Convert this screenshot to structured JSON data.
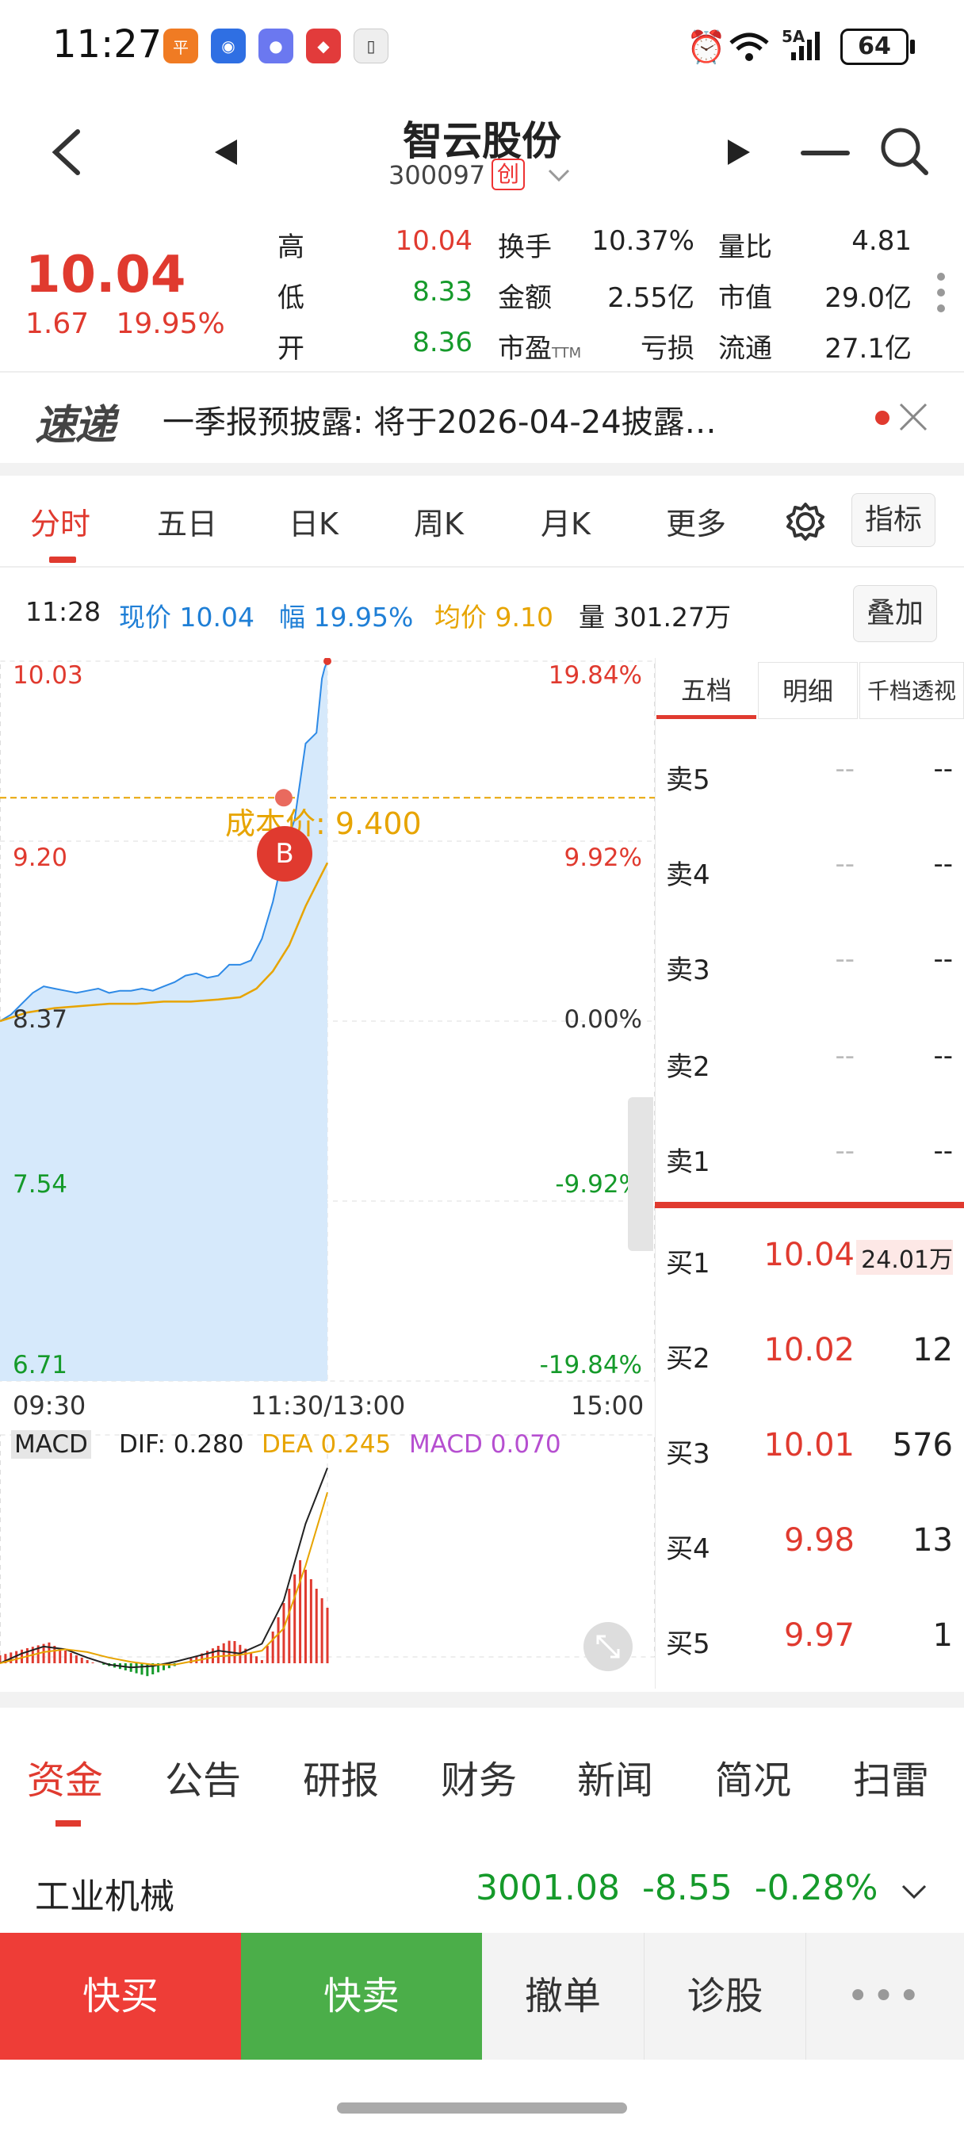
{
  "status_bar": {
    "time": "11:27",
    "network": "5A",
    "battery": "64"
  },
  "header": {
    "stock_name": "智云股份",
    "stock_code": "300097",
    "board_badge": "创"
  },
  "quote": {
    "price": "10.04",
    "change": "1.67",
    "change_pct": "19.95%",
    "high_label": "高",
    "high": "10.04",
    "low_label": "低",
    "low": "8.33",
    "open_label": "开",
    "open": "8.36",
    "turnover_label": "换手",
    "turnover": "10.37%",
    "amount_label": "金额",
    "amount": "2.55亿",
    "pe_label": "市盈",
    "pe_sub": "TTM",
    "pe": "亏损",
    "vol_ratio_label": "量比",
    "vol_ratio": "4.81",
    "mcap_label": "市值",
    "mcap": "29.0亿",
    "float_label": "流通",
    "float": "27.1亿"
  },
  "news": {
    "logo": "速递",
    "text": "一季报预披露: 将于2026-04-24披露…"
  },
  "chart_tabs": [
    "分时",
    "五日",
    "日K",
    "周K",
    "月K",
    "更多"
  ],
  "indicator_button": "指标",
  "info_row": {
    "time": "11:28",
    "price_label": "现价",
    "price": "10.04",
    "pct_label": "幅",
    "pct": "19.95%",
    "avg_label": "均价",
    "avg": "9.10",
    "vol_label": "量",
    "vol": "301.27万",
    "overlay_button": "叠加"
  },
  "chart_data": {
    "type": "line",
    "y_left_ticks": [
      "10.03",
      "9.20",
      "8.37",
      "7.54",
      "6.71"
    ],
    "y_right_ticks": [
      "19.84%",
      "9.92%",
      "0.00%",
      "-9.92%",
      "-19.84%"
    ],
    "x_ticks": [
      "09:30",
      "11:30/13:00",
      "15:00"
    ],
    "cost_line_label": "成本价: 9.400",
    "cost_price": 9.4,
    "buy_marker": "B",
    "ylim": [
      6.71,
      10.03
    ],
    "series": [
      {
        "type": "price",
        "x": [
          0,
          4,
          8,
          12,
          16,
          20,
          24,
          28,
          32,
          36,
          40,
          44,
          48,
          52,
          56,
          60,
          64,
          68,
          72,
          76,
          80,
          84,
          88,
          92,
          96,
          100,
          104,
          108,
          112,
          116,
          118,
          119,
          120
        ],
        "values": [
          8.37,
          8.4,
          8.45,
          8.5,
          8.53,
          8.52,
          8.51,
          8.5,
          8.51,
          8.52,
          8.5,
          8.51,
          8.51,
          8.52,
          8.51,
          8.53,
          8.55,
          8.58,
          8.59,
          8.57,
          8.58,
          8.63,
          8.63,
          8.65,
          8.75,
          8.92,
          9.15,
          9.3,
          9.65,
          9.7,
          9.95,
          10.0,
          10.03
        ]
      },
      {
        "type": "avg",
        "x": [
          0,
          10,
          20,
          30,
          40,
          50,
          60,
          70,
          80,
          88,
          94,
          100,
          106,
          112,
          116,
          120
        ],
        "values": [
          8.37,
          8.41,
          8.43,
          8.44,
          8.45,
          8.45,
          8.46,
          8.46,
          8.47,
          8.48,
          8.52,
          8.6,
          8.72,
          8.9,
          9.0,
          9.1
        ]
      }
    ]
  },
  "macd": {
    "label": "MACD",
    "dif_label": "DIF:",
    "dif": "0.280",
    "dea_label": "DEA",
    "dea": "0.245",
    "macd_label": "MACD",
    "macd": "0.070"
  },
  "order_book": {
    "tabs": [
      "五档",
      "明细",
      "千档透视"
    ],
    "asks": [
      {
        "label": "卖5",
        "price": "--",
        "vol": "--"
      },
      {
        "label": "卖4",
        "price": "--",
        "vol": "--"
      },
      {
        "label": "卖3",
        "price": "--",
        "vol": "--"
      },
      {
        "label": "卖2",
        "price": "--",
        "vol": "--"
      },
      {
        "label": "卖1",
        "price": "--",
        "vol": "--"
      }
    ],
    "bids": [
      {
        "label": "买1",
        "price": "10.04",
        "vol": "24.01万"
      },
      {
        "label": "买2",
        "price": "10.02",
        "vol": "12"
      },
      {
        "label": "买3",
        "price": "10.01",
        "vol": "576"
      },
      {
        "label": "买4",
        "price": "9.98",
        "vol": "13"
      },
      {
        "label": "买5",
        "price": "9.97",
        "vol": "1"
      }
    ]
  },
  "bottom_tabs": [
    "资金",
    "公告",
    "研报",
    "财务",
    "新闻",
    "简况",
    "扫雷"
  ],
  "industry": {
    "name": "工业机械",
    "index": "3001.08",
    "change": "-8.55",
    "pct": "-0.28%"
  },
  "trade_bar": {
    "quick_buy": "快买",
    "quick_sell": "快卖",
    "cancel": "撤单",
    "diagnose": "诊股"
  },
  "colors": {
    "up": "#e03a2f",
    "down": "#159a2a",
    "price_line": "#2e8ae6",
    "avg_line": "#e7a400"
  }
}
